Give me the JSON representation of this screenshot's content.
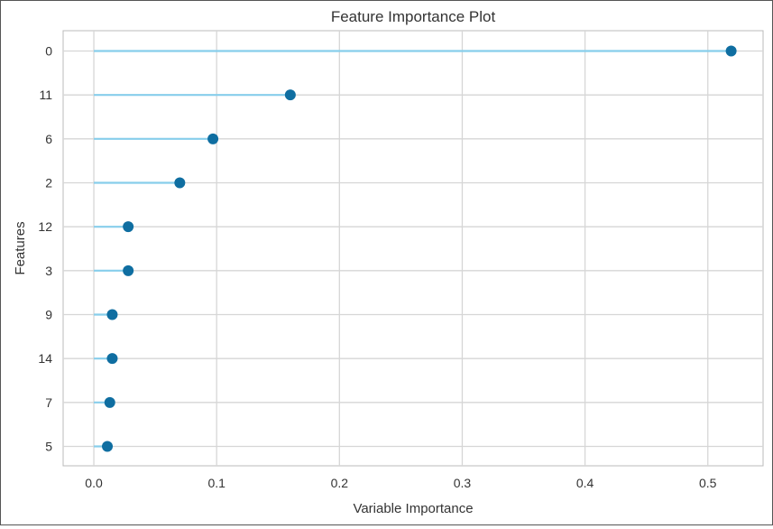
{
  "chart_data": {
    "type": "lollipop",
    "orientation": "horizontal",
    "title": "Feature Importance Plot",
    "xlabel": "Variable Importance",
    "ylabel": "Features",
    "xlim": [
      -0.025,
      0.545
    ],
    "xticks": [
      0.0,
      0.1,
      0.2,
      0.3,
      0.4,
      0.5
    ],
    "xtick_labels": [
      "0.0",
      "0.1",
      "0.2",
      "0.3",
      "0.4",
      "0.5"
    ],
    "grid": true,
    "categories": [
      "0",
      "11",
      "6",
      "2",
      "12",
      "3",
      "9",
      "14",
      "7",
      "5"
    ],
    "values": [
      0.519,
      0.16,
      0.097,
      0.07,
      0.028,
      0.028,
      0.015,
      0.015,
      0.013,
      0.011
    ],
    "colors": {
      "stem": "#87ceeb",
      "marker": "#0f6ea1",
      "grid": "#d6d6d6",
      "plot_border": "#bbbbbb",
      "text": "#333333"
    }
  }
}
